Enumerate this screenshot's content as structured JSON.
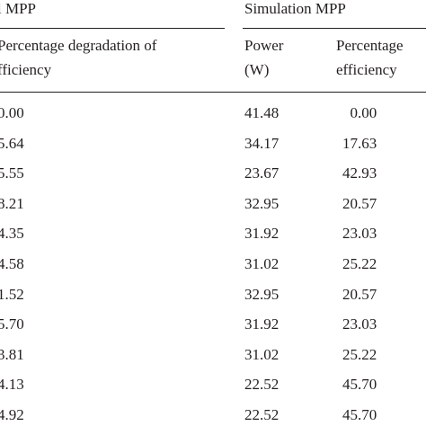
{
  "table": {
    "group_headers": {
      "left": "l MPP",
      "right": "Simulation MPP"
    },
    "column_headers": {
      "left_line1": "Percentage degradation of",
      "left_line2": "fficiency",
      "power_line1": "Power",
      "power_line2": "(W)",
      "pct_line1": "Percentage",
      "pct_line2": "efficiency"
    },
    "rows": [
      {
        "left": "0.00",
        "power": "41.48",
        "pct": "  0.00"
      },
      {
        "left": "5.64",
        "power": "34.17",
        "pct": "17.63"
      },
      {
        "left": "5.55",
        "power": "23.67",
        "pct": "42.93"
      },
      {
        "left": "8.21",
        "power": "32.95",
        "pct": "20.57"
      },
      {
        "left": "4.35",
        "power": "31.92",
        "pct": "23.03"
      },
      {
        "left": "4.58",
        "power": "31.02",
        "pct": "25.22"
      },
      {
        "left": "1.52",
        "power": "32.95",
        "pct": "20.57"
      },
      {
        "left": "5.70",
        "power": "31.92",
        "pct": "23.03"
      },
      {
        "left": "3.81",
        "power": "31.02",
        "pct": "25.22"
      },
      {
        "left": "4.13",
        "power": "22.52",
        "pct": "45.70"
      },
      {
        "left": "4.92",
        "power": "22.52",
        "pct": "45.70"
      }
    ]
  }
}
